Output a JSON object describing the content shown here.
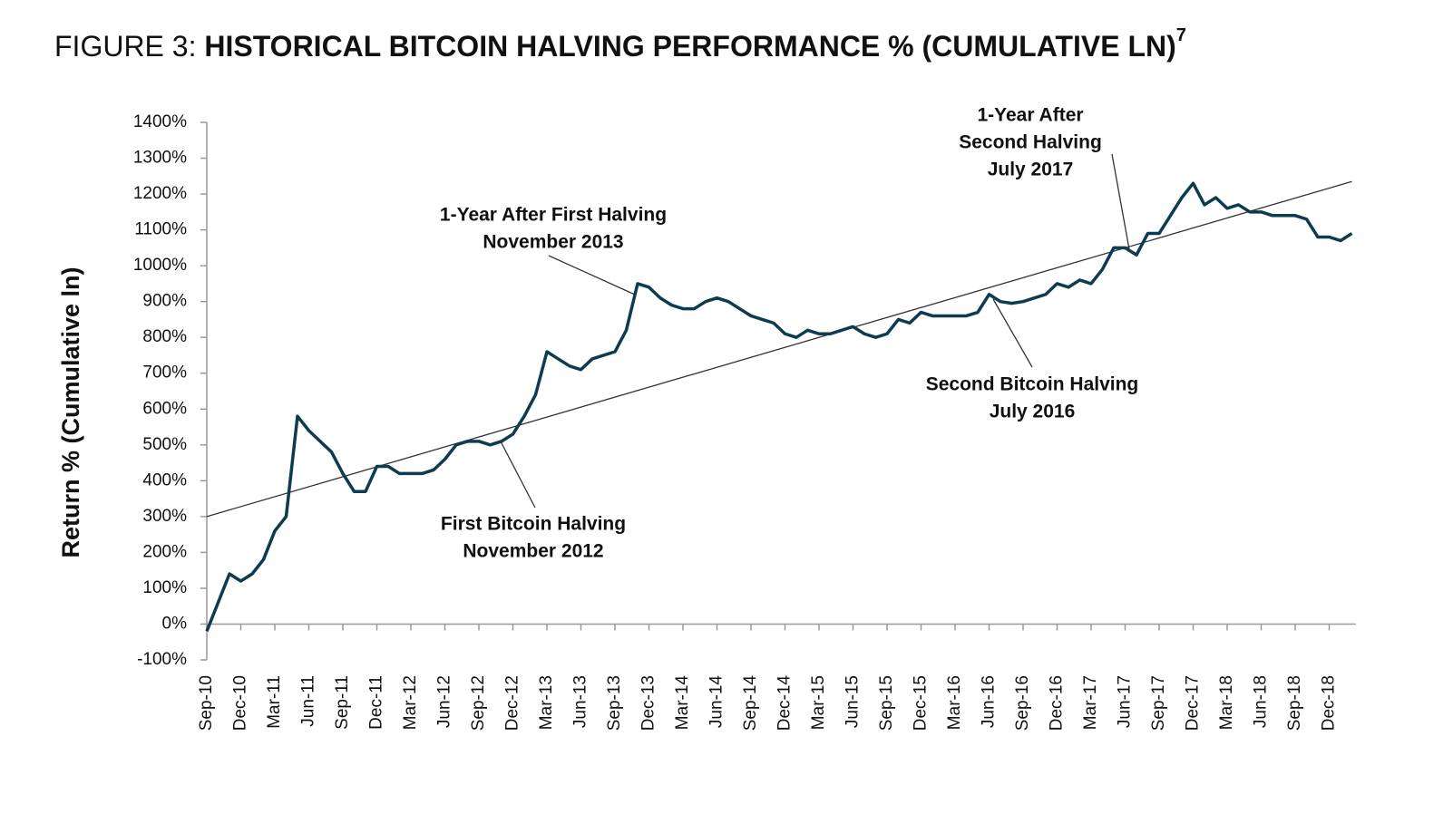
{
  "chart_data": {
    "type": "line",
    "title_prefix": "FIGURE 3:",
    "title": "HISTORICAL BITCOIN HALVING PERFORMANCE % (CUMULATIVE LN)",
    "title_note": "7",
    "y_label": "Return % (Cumulative ln)",
    "categories": [
      "Sep-10",
      null,
      null,
      "Dec-10",
      null,
      null,
      "Mar-11",
      null,
      null,
      "Jun-11",
      null,
      null,
      "Sep-11",
      null,
      null,
      "Dec-11",
      null,
      null,
      "Mar-12",
      null,
      null,
      "Jun-12",
      null,
      null,
      "Sep-12",
      null,
      null,
      "Dec-12",
      null,
      null,
      "Mar-13",
      null,
      null,
      "Jun-13",
      null,
      null,
      "Sep-13",
      null,
      null,
      "Dec-13",
      null,
      null,
      "Mar-14",
      null,
      null,
      "Jun-14",
      null,
      null,
      "Sep-14",
      null,
      null,
      "Dec-14",
      null,
      null,
      "Mar-15",
      null,
      null,
      "Jun-15",
      null,
      null,
      "Sep-15",
      null,
      null,
      "Dec-15",
      null,
      null,
      "Mar-16",
      null,
      null,
      "Jun-16",
      null,
      null,
      "Sep-16",
      null,
      null,
      "Dec-16",
      null,
      null,
      "Mar-17",
      null,
      null,
      "Jun-17",
      null,
      null,
      "Sep-17",
      null,
      null,
      "Dec-17",
      null,
      null,
      "Mar-18",
      null,
      null,
      "Jun-18",
      null,
      null,
      "Sep-18",
      null,
      null,
      "Dec-18",
      null,
      null
    ],
    "series": [
      {
        "color": "#0d3b4f",
        "values": [
          -20,
          60,
          140,
          120,
          140,
          180,
          260,
          300,
          580,
          540,
          510,
          480,
          420,
          370,
          370,
          440,
          440,
          420,
          420,
          420,
          430,
          460,
          500,
          510,
          510,
          500,
          510,
          530,
          580,
          640,
          760,
          740,
          720,
          710,
          740,
          750,
          760,
          820,
          950,
          940,
          910,
          890,
          880,
          880,
          900,
          910,
          900,
          880,
          860,
          850,
          840,
          810,
          800,
          820,
          810,
          810,
          820,
          830,
          810,
          800,
          810,
          850,
          840,
          870,
          860,
          860,
          860,
          860,
          870,
          920,
          900,
          895,
          900,
          910,
          920,
          950,
          940,
          960,
          950,
          990,
          1050,
          1050,
          1030,
          1090,
          1090,
          1140,
          1190,
          1230,
          1170,
          1190,
          1160,
          1170,
          1150,
          1150,
          1140,
          1140,
          1140,
          1130,
          1080,
          1080,
          1070,
          1090
        ]
      }
    ],
    "trendline": {
      "color": "#333333",
      "values": [
        300,
        1235
      ]
    },
    "ylim": [
      -100,
      1400
    ],
    "yticks": [
      {
        "value": -100,
        "label": "-100%"
      },
      {
        "value": 0,
        "label": "0%"
      },
      {
        "value": 100,
        "label": "100%"
      },
      {
        "value": 200,
        "label": "200%"
      },
      {
        "value": 300,
        "label": "300%"
      },
      {
        "value": 400,
        "label": "400%"
      },
      {
        "value": 500,
        "label": "500%"
      },
      {
        "value": 600,
        "label": "600%"
      },
      {
        "value": 700,
        "label": "700%"
      },
      {
        "value": 800,
        "label": "800%"
      },
      {
        "value": 900,
        "label": "900%"
      },
      {
        "value": 1000,
        "label": "1000%"
      },
      {
        "value": 1100,
        "label": "1100%"
      },
      {
        "value": 1200,
        "label": "1200%"
      },
      {
        "value": 1300,
        "label": "1300%"
      },
      {
        "value": 1400,
        "label": "1400%"
      }
    ],
    "annotations": [
      {
        "lines": [
          "1-Year After First Halving",
          "November 2013"
        ]
      },
      {
        "lines": [
          "1-Year After",
          "Second Halving",
          "July 2017"
        ]
      },
      {
        "lines": [
          "Second Bitcoin Halving",
          "July 2016"
        ]
      },
      {
        "lines": [
          "First Bitcoin Halving",
          "November 2012"
        ]
      }
    ]
  }
}
